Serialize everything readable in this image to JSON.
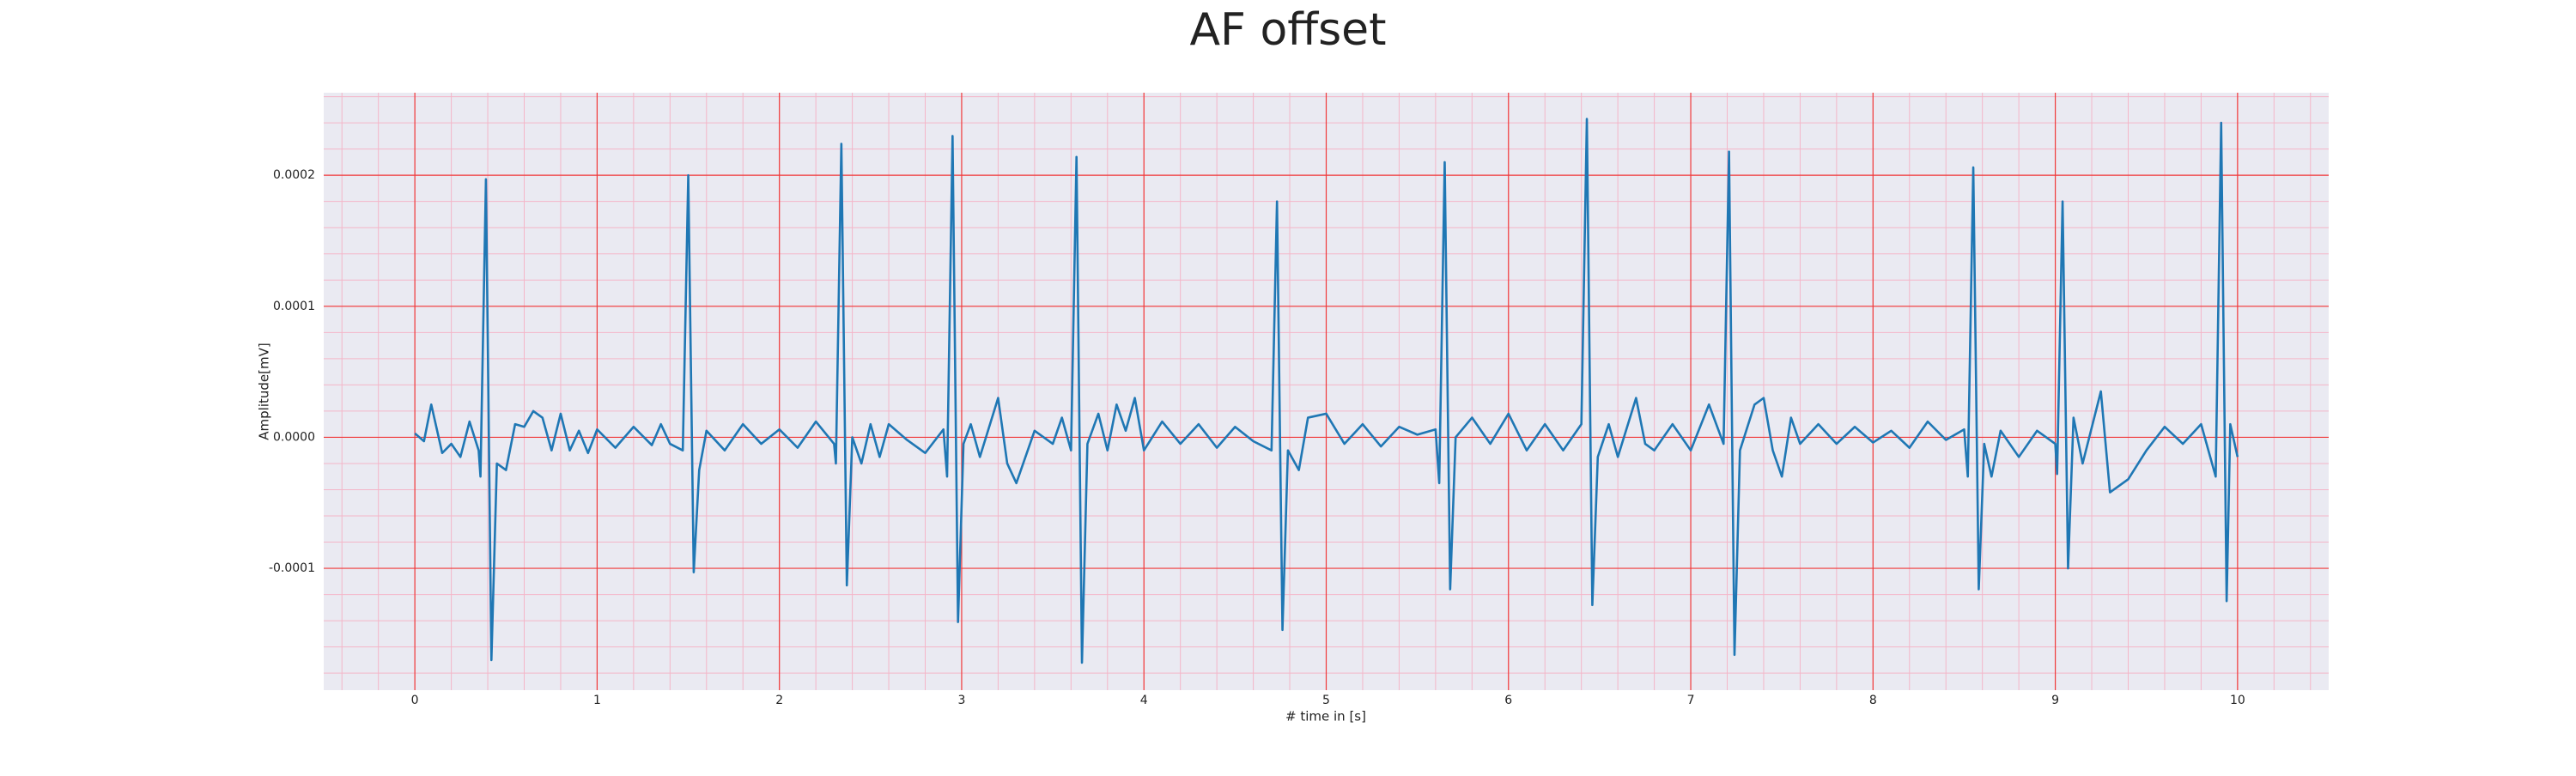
{
  "chart_data": {
    "type": "line",
    "title": "AF offset",
    "x_label": "# time in [s]",
    "y_label": "Amplitude[mV]",
    "color": "#1f77b4",
    "grid": true,
    "minor_grid": true,
    "xlim": [
      -0.5,
      10.5
    ],
    "ylim": [
      -0.000193,
      0.000263
    ],
    "xticks": [
      0,
      1,
      2,
      3,
      4,
      5,
      6,
      7,
      8,
      9,
      10
    ],
    "yticks": [
      -0.0001,
      {
        "value": 0,
        "label": "0.0000"
      },
      0.0001,
      0.0002
    ],
    "x": [
      0,
      0.05,
      0.09,
      0.15,
      0.2,
      0.25,
      0.3,
      0.35,
      0.36,
      0.39,
      0.42,
      0.45,
      0.5,
      0.55,
      0.6,
      0.65,
      0.7,
      0.75,
      0.8,
      0.85,
      0.9,
      0.95,
      1.0,
      1.1,
      1.2,
      1.3,
      1.35,
      1.4,
      1.47,
      1.5,
      1.53,
      1.56,
      1.6,
      1.7,
      1.8,
      1.9,
      2.0,
      2.1,
      2.2,
      2.3,
      2.31,
      2.34,
      2.37,
      2.4,
      2.45,
      2.5,
      2.55,
      2.6,
      2.7,
      2.8,
      2.9,
      2.92,
      2.95,
      2.98,
      3.01,
      3.05,
      3.1,
      3.2,
      3.25,
      3.3,
      3.4,
      3.5,
      3.55,
      3.6,
      3.63,
      3.66,
      3.69,
      3.75,
      3.8,
      3.85,
      3.9,
      3.95,
      4.0,
      4.1,
      4.2,
      4.3,
      4.4,
      4.5,
      4.6,
      4.7,
      4.73,
      4.76,
      4.79,
      4.85,
      4.9,
      5.0,
      5.1,
      5.2,
      5.3,
      5.4,
      5.5,
      5.6,
      5.62,
      5.65,
      5.68,
      5.71,
      5.8,
      5.9,
      6.0,
      6.1,
      6.2,
      6.3,
      6.4,
      6.43,
      6.46,
      6.49,
      6.55,
      6.6,
      6.7,
      6.75,
      6.8,
      6.9,
      7.0,
      7.1,
      7.18,
      7.21,
      7.24,
      7.27,
      7.35,
      7.4,
      7.45,
      7.5,
      7.55,
      7.6,
      7.7,
      7.8,
      7.9,
      8.0,
      8.1,
      8.2,
      8.3,
      8.4,
      8.5,
      8.52,
      8.55,
      8.58,
      8.61,
      8.65,
      8.7,
      8.8,
      8.9,
      9.0,
      9.01,
      9.04,
      9.07,
      9.1,
      9.15,
      9.25,
      9.3,
      9.4,
      9.5,
      9.6,
      9.7,
      9.8,
      9.88,
      9.91,
      9.94,
      9.96,
      10.0
    ],
    "values": [
      3e-06,
      -3e-06,
      2.5e-05,
      -1.2e-05,
      -5e-06,
      -1.5e-05,
      1.2e-05,
      -1e-05,
      -3e-05,
      0.000197,
      -0.00017,
      -2e-05,
      -2.5e-05,
      1e-05,
      8e-06,
      2e-05,
      1.5e-05,
      -1e-05,
      1.8e-05,
      -1e-05,
      5e-06,
      -1.2e-05,
      6e-06,
      -8e-06,
      8e-06,
      -6e-06,
      1e-05,
      -5e-06,
      -1e-05,
      0.0002,
      -0.000103,
      -2.5e-05,
      5e-06,
      -1e-05,
      1e-05,
      -5e-06,
      6e-06,
      -8e-06,
      1.2e-05,
      -5e-06,
      -2e-05,
      0.000224,
      -0.000113,
      0,
      -2e-05,
      1e-05,
      -1.5e-05,
      1e-05,
      -2e-06,
      -1.2e-05,
      6e-06,
      -3e-05,
      0.00023,
      -0.000141,
      -5e-06,
      1e-05,
      -1.5e-05,
      3e-05,
      -2e-05,
      -3.5e-05,
      5e-06,
      -5e-06,
      1.5e-05,
      -1e-05,
      0.000214,
      -0.000172,
      -5e-06,
      1.8e-05,
      -1e-05,
      2.5e-05,
      5e-06,
      3e-05,
      -1e-05,
      1.2e-05,
      -5e-06,
      1e-05,
      -8e-06,
      8e-06,
      -3e-06,
      -1e-05,
      0.00018,
      -0.000147,
      -1e-05,
      -2.5e-05,
      1.5e-05,
      1.8e-05,
      -5e-06,
      1e-05,
      -7e-06,
      8e-06,
      2e-06,
      6e-06,
      -3.5e-05,
      0.00021,
      -0.000116,
      0,
      1.5e-05,
      -5e-06,
      1.8e-05,
      -1e-05,
      1e-05,
      -1e-05,
      1e-05,
      0.000243,
      -0.000128,
      -1.5e-05,
      1e-05,
      -1.5e-05,
      3e-05,
      -5e-06,
      -1e-05,
      1e-05,
      -1e-05,
      2.5e-05,
      -5e-06,
      0.000218,
      -0.000166,
      -1e-05,
      2.5e-05,
      3e-05,
      -1e-05,
      -3e-05,
      1.5e-05,
      -5e-06,
      1e-05,
      -5e-06,
      8e-06,
      -4e-06,
      5e-06,
      -8e-06,
      1.2e-05,
      -2e-06,
      6e-06,
      -3e-05,
      0.000206,
      -0.000116,
      -5e-06,
      -3e-05,
      5e-06,
      -1.5e-05,
      5e-06,
      -5e-06,
      -2.8e-05,
      0.00018,
      -0.0001,
      1.5e-05,
      -2e-05,
      3.5e-05,
      -4.2e-05,
      -3.2e-05,
      -1e-05,
      8e-06,
      -5e-06,
      1e-05,
      -3e-05,
      0.00024,
      -0.000125,
      1e-05,
      -1.5e-05
    ]
  }
}
